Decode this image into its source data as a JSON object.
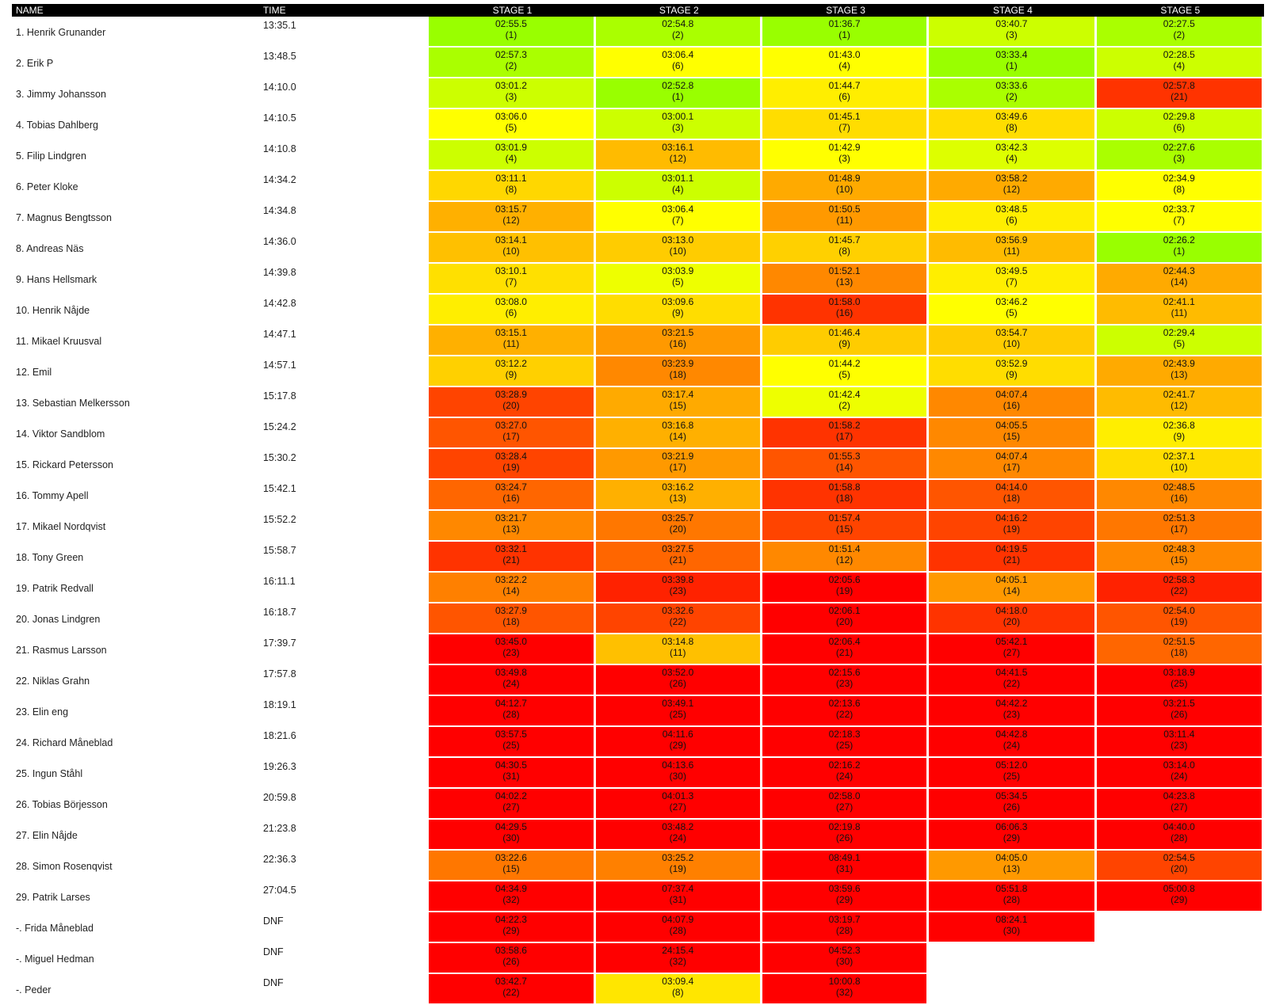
{
  "headers": {
    "name": "NAME",
    "time": "TIME",
    "stages": [
      "STAGE 1",
      "STAGE 2",
      "STAGE 3",
      "STAGE 4",
      "STAGE 5"
    ]
  },
  "colors": {
    "header_bg": "#000000",
    "header_text": "#ffffff",
    "best": "#99ff00",
    "good": "#ccff00",
    "mid": "#ffff00",
    "avg": "#ffd700",
    "slow": "#ffa500",
    "slower": "#ff7f00",
    "slowest": "#ff3300",
    "worst": "#ff0000"
  },
  "rows": [
    {
      "name": "1. Henrik Grunander",
      "time": "13:35.1",
      "stages": [
        {
          "t": "02:55.5",
          "r": "(1)",
          "c": "#99ff00"
        },
        {
          "t": "02:54.8",
          "r": "(2)",
          "c": "#aaff00"
        },
        {
          "t": "01:36.7",
          "r": "(1)",
          "c": "#99ff00"
        },
        {
          "t": "03:40.7",
          "r": "(3)",
          "c": "#ccff00"
        },
        {
          "t": "02:27.5",
          "r": "(2)",
          "c": "#aaff00"
        }
      ]
    },
    {
      "name": "2. Erik P",
      "time": "13:48.5",
      "stages": [
        {
          "t": "02:57.3",
          "r": "(2)",
          "c": "#aaff00"
        },
        {
          "t": "03:06.4",
          "r": "(6)",
          "c": "#ffff00"
        },
        {
          "t": "01:43.0",
          "r": "(4)",
          "c": "#ffff00"
        },
        {
          "t": "03:33.4",
          "r": "(1)",
          "c": "#99ff00"
        },
        {
          "t": "02:28.5",
          "r": "(4)",
          "c": "#ccff00"
        }
      ]
    },
    {
      "name": "3. Jimmy Johansson",
      "time": "14:10.0",
      "stages": [
        {
          "t": "03:01.2",
          "r": "(3)",
          "c": "#ccff00"
        },
        {
          "t": "02:52.8",
          "r": "(1)",
          "c": "#99ff00"
        },
        {
          "t": "01:44.7",
          "r": "(6)",
          "c": "#ffee00"
        },
        {
          "t": "03:33.6",
          "r": "(2)",
          "c": "#aaff00"
        },
        {
          "t": "02:57.8",
          "r": "(21)",
          "c": "#ff3300"
        }
      ]
    },
    {
      "name": "4. Tobias Dahlberg",
      "time": "14:10.5",
      "stages": [
        {
          "t": "03:06.0",
          "r": "(5)",
          "c": "#ffff00"
        },
        {
          "t": "03:00.1",
          "r": "(3)",
          "c": "#ccff00"
        },
        {
          "t": "01:45.1",
          "r": "(7)",
          "c": "#ffdd00"
        },
        {
          "t": "03:49.6",
          "r": "(8)",
          "c": "#ffdd00"
        },
        {
          "t": "02:29.8",
          "r": "(6)",
          "c": "#ccff00"
        }
      ]
    },
    {
      "name": "5. Filip Lindgren",
      "time": "14:10.8",
      "stages": [
        {
          "t": "03:01.9",
          "r": "(4)",
          "c": "#ccff00"
        },
        {
          "t": "03:16.1",
          "r": "(12)",
          "c": "#ffbb00"
        },
        {
          "t": "01:42.9",
          "r": "(3)",
          "c": "#ffff00"
        },
        {
          "t": "03:42.3",
          "r": "(4)",
          "c": "#ddff00"
        },
        {
          "t": "02:27.6",
          "r": "(3)",
          "c": "#aaff00"
        }
      ]
    },
    {
      "name": "6. Peter Kloke",
      "time": "14:34.2",
      "stages": [
        {
          "t": "03:11.1",
          "r": "(8)",
          "c": "#ffd700"
        },
        {
          "t": "03:01.1",
          "r": "(4)",
          "c": "#ccff00"
        },
        {
          "t": "01:48.9",
          "r": "(10)",
          "c": "#ffaa00"
        },
        {
          "t": "03:58.2",
          "r": "(12)",
          "c": "#ffaa00"
        },
        {
          "t": "02:34.9",
          "r": "(8)",
          "c": "#ffff00"
        }
      ]
    },
    {
      "name": "7. Magnus Bengtsson",
      "time": "14:34.8",
      "stages": [
        {
          "t": "03:15.7",
          "r": "(12)",
          "c": "#ffb000"
        },
        {
          "t": "03:06.4",
          "r": "(7)",
          "c": "#ffff00"
        },
        {
          "t": "01:50.5",
          "r": "(11)",
          "c": "#ff9900"
        },
        {
          "t": "03:48.5",
          "r": "(6)",
          "c": "#ffee00"
        },
        {
          "t": "02:33.7",
          "r": "(7)",
          "c": "#ffff00"
        }
      ]
    },
    {
      "name": "8. Andreas Näs",
      "time": "14:36.0",
      "stages": [
        {
          "t": "03:14.1",
          "r": "(10)",
          "c": "#ffc000"
        },
        {
          "t": "03:13.0",
          "r": "(10)",
          "c": "#ffcc00"
        },
        {
          "t": "01:45.7",
          "r": "(8)",
          "c": "#ffd000"
        },
        {
          "t": "03:56.9",
          "r": "(11)",
          "c": "#ffbb00"
        },
        {
          "t": "02:26.2",
          "r": "(1)",
          "c": "#99ff00"
        }
      ]
    },
    {
      "name": "9. Hans Hellsmark",
      "time": "14:39.8",
      "stages": [
        {
          "t": "03:10.1",
          "r": "(7)",
          "c": "#ffe000"
        },
        {
          "t": "03:03.9",
          "r": "(5)",
          "c": "#eeff00"
        },
        {
          "t": "01:52.1",
          "r": "(13)",
          "c": "#ff8800"
        },
        {
          "t": "03:49.5",
          "r": "(7)",
          "c": "#ffee00"
        },
        {
          "t": "02:44.3",
          "r": "(14)",
          "c": "#ffaa00"
        }
      ]
    },
    {
      "name": "10. Henrik Nåjde",
      "time": "14:42.8",
      "stages": [
        {
          "t": "03:08.0",
          "r": "(6)",
          "c": "#ffee00"
        },
        {
          "t": "03:09.6",
          "r": "(9)",
          "c": "#ffdd00"
        },
        {
          "t": "01:58.0",
          "r": "(16)",
          "c": "#ff3300"
        },
        {
          "t": "03:46.2",
          "r": "(5)",
          "c": "#ffff00"
        },
        {
          "t": "02:41.1",
          "r": "(11)",
          "c": "#ffbb00"
        }
      ]
    },
    {
      "name": "11. Mikael Kruusval",
      "time": "14:47.1",
      "stages": [
        {
          "t": "03:15.1",
          "r": "(11)",
          "c": "#ffb000"
        },
        {
          "t": "03:21.5",
          "r": "(16)",
          "c": "#ff9900"
        },
        {
          "t": "01:46.4",
          "r": "(9)",
          "c": "#ffcc00"
        },
        {
          "t": "03:54.7",
          "r": "(10)",
          "c": "#ffcc00"
        },
        {
          "t": "02:29.4",
          "r": "(5)",
          "c": "#ccff00"
        }
      ]
    },
    {
      "name": "12. Emil",
      "time": "14:57.1",
      "stages": [
        {
          "t": "03:12.2",
          "r": "(9)",
          "c": "#ffd000"
        },
        {
          "t": "03:23.9",
          "r": "(18)",
          "c": "#ff8800"
        },
        {
          "t": "01:44.2",
          "r": "(5)",
          "c": "#ffff00"
        },
        {
          "t": "03:52.9",
          "r": "(9)",
          "c": "#ffdd00"
        },
        {
          "t": "02:43.9",
          "r": "(13)",
          "c": "#ffaa00"
        }
      ]
    },
    {
      "name": "13. Sebastian Melkersson",
      "time": "15:17.8",
      "stages": [
        {
          "t": "03:28.9",
          "r": "(20)",
          "c": "#ff4400"
        },
        {
          "t": "03:17.4",
          "r": "(15)",
          "c": "#ffaa00"
        },
        {
          "t": "01:42.4",
          "r": "(2)",
          "c": "#eeff00"
        },
        {
          "t": "04:07.4",
          "r": "(16)",
          "c": "#ff8800"
        },
        {
          "t": "02:41.7",
          "r": "(12)",
          "c": "#ffbb00"
        }
      ]
    },
    {
      "name": "14. Viktor Sandblom",
      "time": "15:24.2",
      "stages": [
        {
          "t": "03:27.0",
          "r": "(17)",
          "c": "#ff5500"
        },
        {
          "t": "03:16.8",
          "r": "(14)",
          "c": "#ffb000"
        },
        {
          "t": "01:58.2",
          "r": "(17)",
          "c": "#ff3300"
        },
        {
          "t": "04:05.5",
          "r": "(15)",
          "c": "#ff8800"
        },
        {
          "t": "02:36.8",
          "r": "(9)",
          "c": "#ffee00"
        }
      ]
    },
    {
      "name": "15. Rickard Petersson",
      "time": "15:30.2",
      "stages": [
        {
          "t": "03:28.4",
          "r": "(19)",
          "c": "#ff4400"
        },
        {
          "t": "03:21.9",
          "r": "(17)",
          "c": "#ff9900"
        },
        {
          "t": "01:55.3",
          "r": "(14)",
          "c": "#ff5500"
        },
        {
          "t": "04:07.4",
          "r": "(17)",
          "c": "#ff8800"
        },
        {
          "t": "02:37.1",
          "r": "(10)",
          "c": "#ffdd00"
        }
      ]
    },
    {
      "name": "16. Tommy Apell",
      "time": "15:42.1",
      "stages": [
        {
          "t": "03:24.7",
          "r": "(16)",
          "c": "#ff6600"
        },
        {
          "t": "03:16.2",
          "r": "(13)",
          "c": "#ffb000"
        },
        {
          "t": "01:58.8",
          "r": "(18)",
          "c": "#ff3300"
        },
        {
          "t": "04:14.0",
          "r": "(18)",
          "c": "#ff5500"
        },
        {
          "t": "02:48.5",
          "r": "(16)",
          "c": "#ff8800"
        }
      ]
    },
    {
      "name": "17. Mikael Nordqvist",
      "time": "15:52.2",
      "stages": [
        {
          "t": "03:21.7",
          "r": "(13)",
          "c": "#ff8800"
        },
        {
          "t": "03:25.7",
          "r": "(20)",
          "c": "#ff7700"
        },
        {
          "t": "01:57.4",
          "r": "(15)",
          "c": "#ff4400"
        },
        {
          "t": "04:16.2",
          "r": "(19)",
          "c": "#ff4400"
        },
        {
          "t": "02:51.3",
          "r": "(17)",
          "c": "#ff7700"
        }
      ]
    },
    {
      "name": "18. Tony Green",
      "time": "15:58.7",
      "stages": [
        {
          "t": "03:32.1",
          "r": "(21)",
          "c": "#ff3300"
        },
        {
          "t": "03:27.5",
          "r": "(21)",
          "c": "#ff6600"
        },
        {
          "t": "01:51.4",
          "r": "(12)",
          "c": "#ff8800"
        },
        {
          "t": "04:19.5",
          "r": "(21)",
          "c": "#ff3300"
        },
        {
          "t": "02:48.3",
          "r": "(15)",
          "c": "#ff8800"
        }
      ]
    },
    {
      "name": "19. Patrik Redvall",
      "time": "16:11.1",
      "stages": [
        {
          "t": "03:22.2",
          "r": "(14)",
          "c": "#ff8000"
        },
        {
          "t": "03:39.8",
          "r": "(23)",
          "c": "#ff2200"
        },
        {
          "t": "02:05.6",
          "r": "(19)",
          "c": "#ff0000"
        },
        {
          "t": "04:05.1",
          "r": "(14)",
          "c": "#ff9900"
        },
        {
          "t": "02:58.3",
          "r": "(22)",
          "c": "#ff2200"
        }
      ]
    },
    {
      "name": "20. Jonas Lindgren",
      "time": "16:18.7",
      "stages": [
        {
          "t": "03:27.9",
          "r": "(18)",
          "c": "#ff5500"
        },
        {
          "t": "03:32.6",
          "r": "(22)",
          "c": "#ff4400"
        },
        {
          "t": "02:06.1",
          "r": "(20)",
          "c": "#ff0000"
        },
        {
          "t": "04:18.0",
          "r": "(20)",
          "c": "#ff3300"
        },
        {
          "t": "02:54.0",
          "r": "(19)",
          "c": "#ff5500"
        }
      ]
    },
    {
      "name": "21. Rasmus Larsson",
      "time": "17:39.7",
      "stages": [
        {
          "t": "03:45.0",
          "r": "(23)",
          "c": "#ff0000"
        },
        {
          "t": "03:14.8",
          "r": "(11)",
          "c": "#ffc000"
        },
        {
          "t": "02:06.4",
          "r": "(21)",
          "c": "#ff0000"
        },
        {
          "t": "05:42.1",
          "r": "(27)",
          "c": "#ff0000"
        },
        {
          "t": "02:51.5",
          "r": "(18)",
          "c": "#ff6600"
        }
      ]
    },
    {
      "name": "22. Niklas Grahn",
      "time": "17:57.8",
      "stages": [
        {
          "t": "03:49.8",
          "r": "(24)",
          "c": "#ff0000"
        },
        {
          "t": "03:52.0",
          "r": "(26)",
          "c": "#ff0000"
        },
        {
          "t": "02:15.6",
          "r": "(23)",
          "c": "#ff0000"
        },
        {
          "t": "04:41.5",
          "r": "(22)",
          "c": "#ff0000"
        },
        {
          "t": "03:18.9",
          "r": "(25)",
          "c": "#ff0000"
        }
      ]
    },
    {
      "name": "23. Elin eng",
      "time": "18:19.1",
      "stages": [
        {
          "t": "04:12.7",
          "r": "(28)",
          "c": "#ff0000"
        },
        {
          "t": "03:49.1",
          "r": "(25)",
          "c": "#ff0000"
        },
        {
          "t": "02:13.6",
          "r": "(22)",
          "c": "#ff0000"
        },
        {
          "t": "04:42.2",
          "r": "(23)",
          "c": "#ff0000"
        },
        {
          "t": "03:21.5",
          "r": "(26)",
          "c": "#ff0000"
        }
      ]
    },
    {
      "name": "24. Richard Måneblad",
      "time": "18:21.6",
      "stages": [
        {
          "t": "03:57.5",
          "r": "(25)",
          "c": "#ff0000"
        },
        {
          "t": "04:11.6",
          "r": "(29)",
          "c": "#ff0000"
        },
        {
          "t": "02:18.3",
          "r": "(25)",
          "c": "#ff0000"
        },
        {
          "t": "04:42.8",
          "r": "(24)",
          "c": "#ff0000"
        },
        {
          "t": "03:11.4",
          "r": "(23)",
          "c": "#ff0000"
        }
      ]
    },
    {
      "name": "25. Ingun Ståhl",
      "time": "19:26.3",
      "stages": [
        {
          "t": "04:30.5",
          "r": "(31)",
          "c": "#ff0000"
        },
        {
          "t": "04:13.6",
          "r": "(30)",
          "c": "#ff0000"
        },
        {
          "t": "02:16.2",
          "r": "(24)",
          "c": "#ff0000"
        },
        {
          "t": "05:12.0",
          "r": "(25)",
          "c": "#ff0000"
        },
        {
          "t": "03:14.0",
          "r": "(24)",
          "c": "#ff0000"
        }
      ]
    },
    {
      "name": "26. Tobias Börjesson",
      "time": "20:59.8",
      "stages": [
        {
          "t": "04:02.2",
          "r": "(27)",
          "c": "#ff0000"
        },
        {
          "t": "04:01.3",
          "r": "(27)",
          "c": "#ff0000"
        },
        {
          "t": "02:58.0",
          "r": "(27)",
          "c": "#ff0000"
        },
        {
          "t": "05:34.5",
          "r": "(26)",
          "c": "#ff0000"
        },
        {
          "t": "04:23.8",
          "r": "(27)",
          "c": "#ff0000"
        }
      ]
    },
    {
      "name": "27. Elin Nåjde",
      "time": "21:23.8",
      "stages": [
        {
          "t": "04:29.5",
          "r": "(30)",
          "c": "#ff0000"
        },
        {
          "t": "03:48.2",
          "r": "(24)",
          "c": "#ff0000"
        },
        {
          "t": "02:19.8",
          "r": "(26)",
          "c": "#ff0000"
        },
        {
          "t": "06:06.3",
          "r": "(29)",
          "c": "#ff0000"
        },
        {
          "t": "04:40.0",
          "r": "(28)",
          "c": "#ff0000"
        }
      ]
    },
    {
      "name": "28. Simon Rosenqvist",
      "time": "22:36.3",
      "stages": [
        {
          "t": "03:22.6",
          "r": "(15)",
          "c": "#ff7700"
        },
        {
          "t": "03:25.2",
          "r": "(19)",
          "c": "#ff8000"
        },
        {
          "t": "08:49.1",
          "r": "(31)",
          "c": "#ff0000"
        },
        {
          "t": "04:05.0",
          "r": "(13)",
          "c": "#ff9900"
        },
        {
          "t": "02:54.5",
          "r": "(20)",
          "c": "#ff4400"
        }
      ]
    },
    {
      "name": "29. Patrik Larses",
      "time": "27:04.5",
      "stages": [
        {
          "t": "04:34.9",
          "r": "(32)",
          "c": "#ff0000"
        },
        {
          "t": "07:37.4",
          "r": "(31)",
          "c": "#ff0000"
        },
        {
          "t": "03:59.6",
          "r": "(29)",
          "c": "#ff0000"
        },
        {
          "t": "05:51.8",
          "r": "(28)",
          "c": "#ff0000"
        },
        {
          "t": "05:00.8",
          "r": "(29)",
          "c": "#ff0000"
        }
      ]
    },
    {
      "name": "-. Frida Måneblad",
      "time": "DNF",
      "stages": [
        {
          "t": "04:22.3",
          "r": "(29)",
          "c": "#ff0000"
        },
        {
          "t": "04:07.9",
          "r": "(28)",
          "c": "#ff0000"
        },
        {
          "t": "03:19.7",
          "r": "(28)",
          "c": "#ff0000"
        },
        {
          "t": "08:24.1",
          "r": "(30)",
          "c": "#ff0000"
        },
        null
      ]
    },
    {
      "name": "-. Miguel Hedman",
      "time": "DNF",
      "stages": [
        {
          "t": "03:58.6",
          "r": "(26)",
          "c": "#ff0000"
        },
        {
          "t": "24:15.4",
          "r": "(32)",
          "c": "#ff0000"
        },
        {
          "t": "04:52.3",
          "r": "(30)",
          "c": "#ff0000"
        },
        null,
        null
      ]
    },
    {
      "name": "-. Peder",
      "time": "DNF",
      "stages": [
        {
          "t": "03:42.7",
          "r": "(22)",
          "c": "#ff0000"
        },
        {
          "t": "03:09.4",
          "r": "(8)",
          "c": "#ffe600"
        },
        {
          "t": "10:00.8",
          "r": "(32)",
          "c": "#ff0000"
        },
        null,
        null
      ]
    }
  ]
}
